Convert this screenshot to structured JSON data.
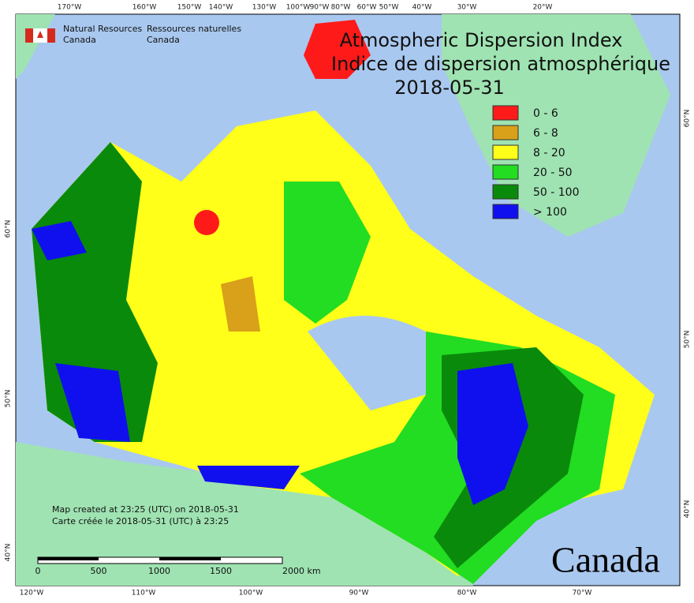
{
  "title": {
    "line1": "Atmospheric Dispersion Index",
    "line2": "Indice de dispersion atmosphérique",
    "date": "2018-05-31"
  },
  "legend": [
    {
      "label": "0 - 6",
      "color": "#ff1a1a"
    },
    {
      "label": "6 - 8",
      "color": "#d9a01a"
    },
    {
      "label": "8 - 20",
      "color": "#ffff1a"
    },
    {
      "label": "20 - 50",
      "color": "#22dd22"
    },
    {
      "label": "50 - 100",
      "color": "#0a8a0a"
    },
    {
      "label": "> 100",
      "color": "#1010ee"
    }
  ],
  "credits": {
    "en_line1": "Natural Resources",
    "en_line2": "Canada",
    "fr_line1": "Ressources naturelles",
    "fr_line2": "Canada"
  },
  "footer": {
    "created_en": "Map created at 23:25 (UTC) on 2018-05-31",
    "created_fr": "Carte créée le 2018-05-31 (UTC) à 23:25"
  },
  "scale_bar": [
    "0",
    "500",
    "1000",
    "1500",
    "2000  km"
  ],
  "wordmark": "Canada",
  "graticule": {
    "top": [
      "170°W",
      "160°W",
      "150°W",
      "140°W",
      "130°W",
      "100°W",
      "90°W",
      "80°W",
      "60°W",
      "50°W",
      "40°W",
      "30°W",
      "20°W"
    ],
    "bottom": [
      "120°W",
      "110°W",
      "100°W",
      "90°W",
      "80°W",
      "70°W"
    ],
    "left": [
      "60°N",
      "50°N",
      "40°N"
    ],
    "right": [
      "60°N",
      "50°N",
      "40°N"
    ]
  }
}
